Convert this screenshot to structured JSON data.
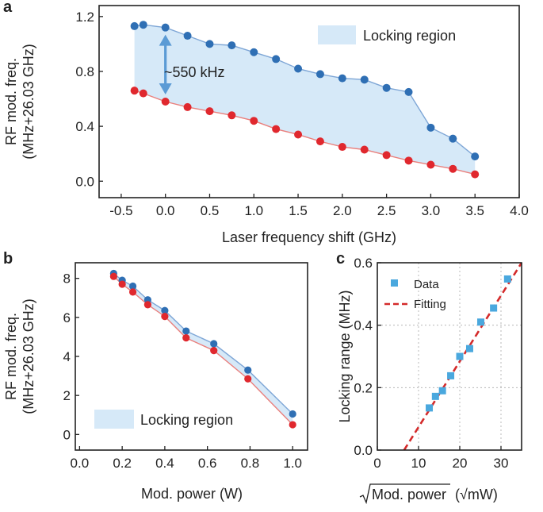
{
  "colors": {
    "upper": "#2f6fb4",
    "upper_line": "#7ea6d6",
    "lower": "#e0282e",
    "lower_line": "#ea7f7c",
    "region": "#d6e9f8",
    "data_marker": "#4aa8de",
    "fit_line": "#d42a2a",
    "arrow": "#5b9bd5"
  },
  "chart_data": [
    {
      "panel": "a",
      "type": "line",
      "xlabel": "Laser frequency shift (GHz)",
      "ylabel": [
        "RF mod. freq.",
        "(MHz+26.03 GHz)"
      ],
      "xlim": [
        -0.75,
        4.0
      ],
      "ylim": [
        -0.12,
        1.28
      ],
      "xticks": [
        -0.5,
        0.0,
        0.5,
        1.0,
        1.5,
        2.0,
        2.5,
        3.0,
        3.5,
        4.0
      ],
      "xtick_labels": [
        "-0.5",
        "0.0",
        "0.5",
        "1.0",
        "1.5",
        "2.0",
        "2.5",
        "3.0",
        "3.5",
        "4.0"
      ],
      "yticks": [
        0.0,
        0.4,
        0.8,
        1.2
      ],
      "ytick_labels": [
        "0.0",
        "0.4",
        "0.8",
        "1.2"
      ],
      "x": [
        -0.35,
        -0.25,
        0.0,
        0.25,
        0.5,
        0.75,
        1.0,
        1.25,
        1.5,
        1.75,
        2.0,
        2.25,
        2.5,
        2.75,
        3.0,
        3.25,
        3.5
      ],
      "series": [
        {
          "name": "upper",
          "values": [
            1.13,
            1.14,
            1.12,
            1.06,
            1.0,
            0.99,
            0.94,
            0.89,
            0.82,
            0.78,
            0.75,
            0.74,
            0.68,
            0.65,
            0.39,
            0.31,
            0.18
          ]
        },
        {
          "name": "lower",
          "values": [
            0.66,
            0.64,
            0.58,
            0.54,
            0.51,
            0.48,
            0.44,
            0.38,
            0.34,
            0.29,
            0.25,
            0.23,
            0.19,
            0.15,
            0.12,
            0.09,
            0.05
          ]
        }
      ],
      "legend": "Locking region",
      "annotation": "~550 kHz",
      "arrow_at_x": 0.0
    },
    {
      "panel": "b",
      "type": "line",
      "xlabel": "Mod. power (W)",
      "ylabel": [
        "RF mod. freq.",
        "(MHz+26.03 GHz)"
      ],
      "xlim": [
        -0.02,
        1.07
      ],
      "ylim": [
        -0.8,
        8.8
      ],
      "xticks": [
        0.0,
        0.2,
        0.4,
        0.6,
        0.8,
        1.0
      ],
      "xtick_labels": [
        "0.0",
        "0.2",
        "0.4",
        "0.6",
        "0.8",
        "1.0"
      ],
      "yticks": [
        0,
        2,
        4,
        6,
        8
      ],
      "ytick_labels": [
        "0",
        "2",
        "4",
        "6",
        "8"
      ],
      "x": [
        0.16,
        0.2,
        0.25,
        0.32,
        0.4,
        0.5,
        0.63,
        0.79,
        1.0
      ],
      "series": [
        {
          "name": "upper",
          "values": [
            8.25,
            7.9,
            7.6,
            6.9,
            6.35,
            5.3,
            4.65,
            3.3,
            1.05
          ]
        },
        {
          "name": "lower",
          "values": [
            8.1,
            7.7,
            7.3,
            6.65,
            6.05,
            4.95,
            4.3,
            2.85,
            0.5
          ]
        }
      ],
      "legend": "Locking region"
    },
    {
      "panel": "c",
      "type": "scatter",
      "xlabel": "√Mod. power (√mW)",
      "xlabel_radicand": "Mod. power",
      "xlabel_unit": "(√mW)",
      "ylabel": "Locking range (MHz)",
      "xlim": [
        0,
        35
      ],
      "ylim": [
        0.0,
        0.6
      ],
      "xticks": [
        0,
        10,
        20,
        30
      ],
      "xtick_labels": [
        "0",
        "10",
        "20",
        "30"
      ],
      "yticks": [
        0.0,
        0.2,
        0.4,
        0.6
      ],
      "ytick_labels": [
        "0.0",
        "0.2",
        "0.4",
        "0.6"
      ],
      "grid": true,
      "data": {
        "name": "Data",
        "x": [
          12.6,
          14.1,
          15.8,
          17.8,
          20.0,
          22.4,
          25.1,
          28.2,
          31.6
        ],
        "y": [
          0.135,
          0.172,
          0.19,
          0.238,
          0.3,
          0.325,
          0.41,
          0.455,
          0.548
        ]
      },
      "fit": {
        "name": "Fitting",
        "x": [
          6.5,
          35
        ],
        "y": [
          0.0,
          0.6
        ]
      }
    }
  ]
}
